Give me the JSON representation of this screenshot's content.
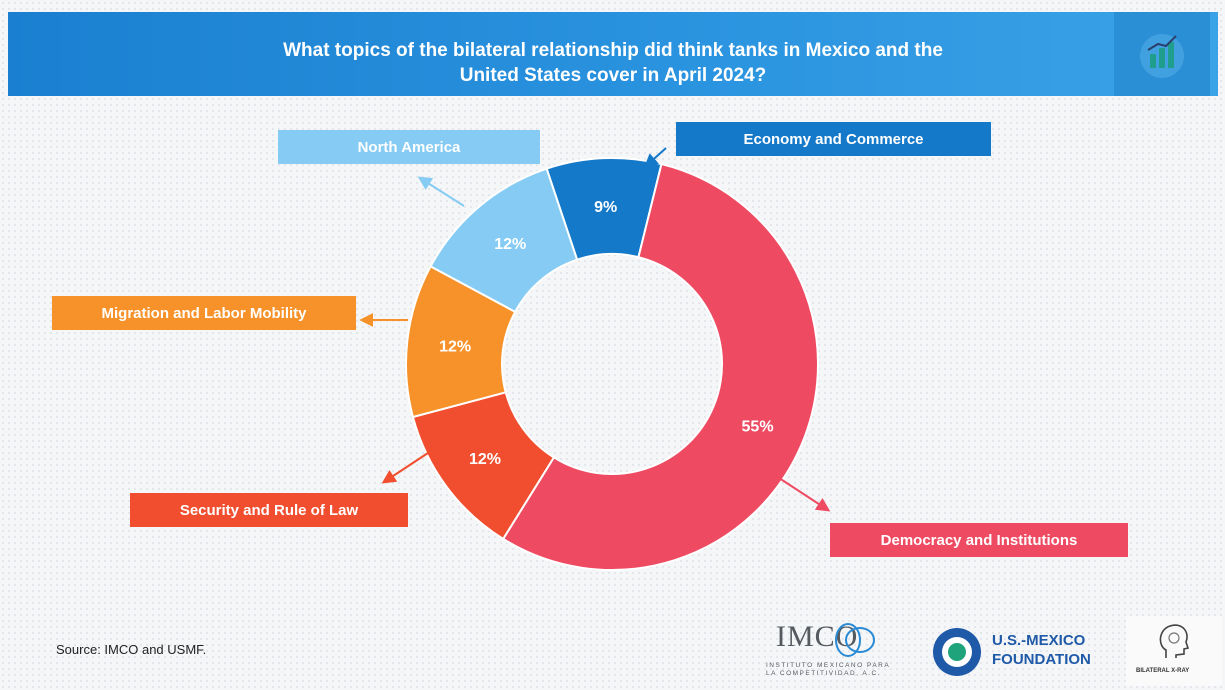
{
  "header": {
    "title_line1": "What topics of the bilateral relationship did think tanks in Mexico and the",
    "title_line2": "United States cover in April 2024?"
  },
  "chart_data": {
    "type": "pie",
    "title": "What topics of the bilateral relationship did think tanks in Mexico and the United States cover in April 2024?",
    "style": "donut",
    "slices": [
      {
        "label": "Economy and Commerce",
        "value": 9,
        "display": "9%",
        "color": "#1479c9"
      },
      {
        "label": "Democracy and Institutions",
        "value": 55,
        "display": "55%",
        "color": "#ee4b63"
      },
      {
        "label": "Security and Rule of Law",
        "value": 12,
        "display": "12%",
        "color": "#f04e2e"
      },
      {
        "label": "Migration and Labor Mobility",
        "value": 12,
        "display": "12%",
        "color": "#f7922a"
      },
      {
        "label": "North America",
        "value": 12,
        "display": "12%",
        "color": "#85cbf3"
      }
    ]
  },
  "footer": {
    "source": "Source: IMCO and USMF."
  },
  "logos": {
    "imco_word": "IMCO",
    "imco_sub_line1": "INSTITUTO MEXICANO PARA",
    "imco_sub_line2": "LA COMPETITIVIDAD, A.C.",
    "usmf_line1": "U.S.-MEXICO",
    "usmf_line2": "FOUNDATION",
    "bilateral_xray": "BILATERAL X-RAY"
  }
}
